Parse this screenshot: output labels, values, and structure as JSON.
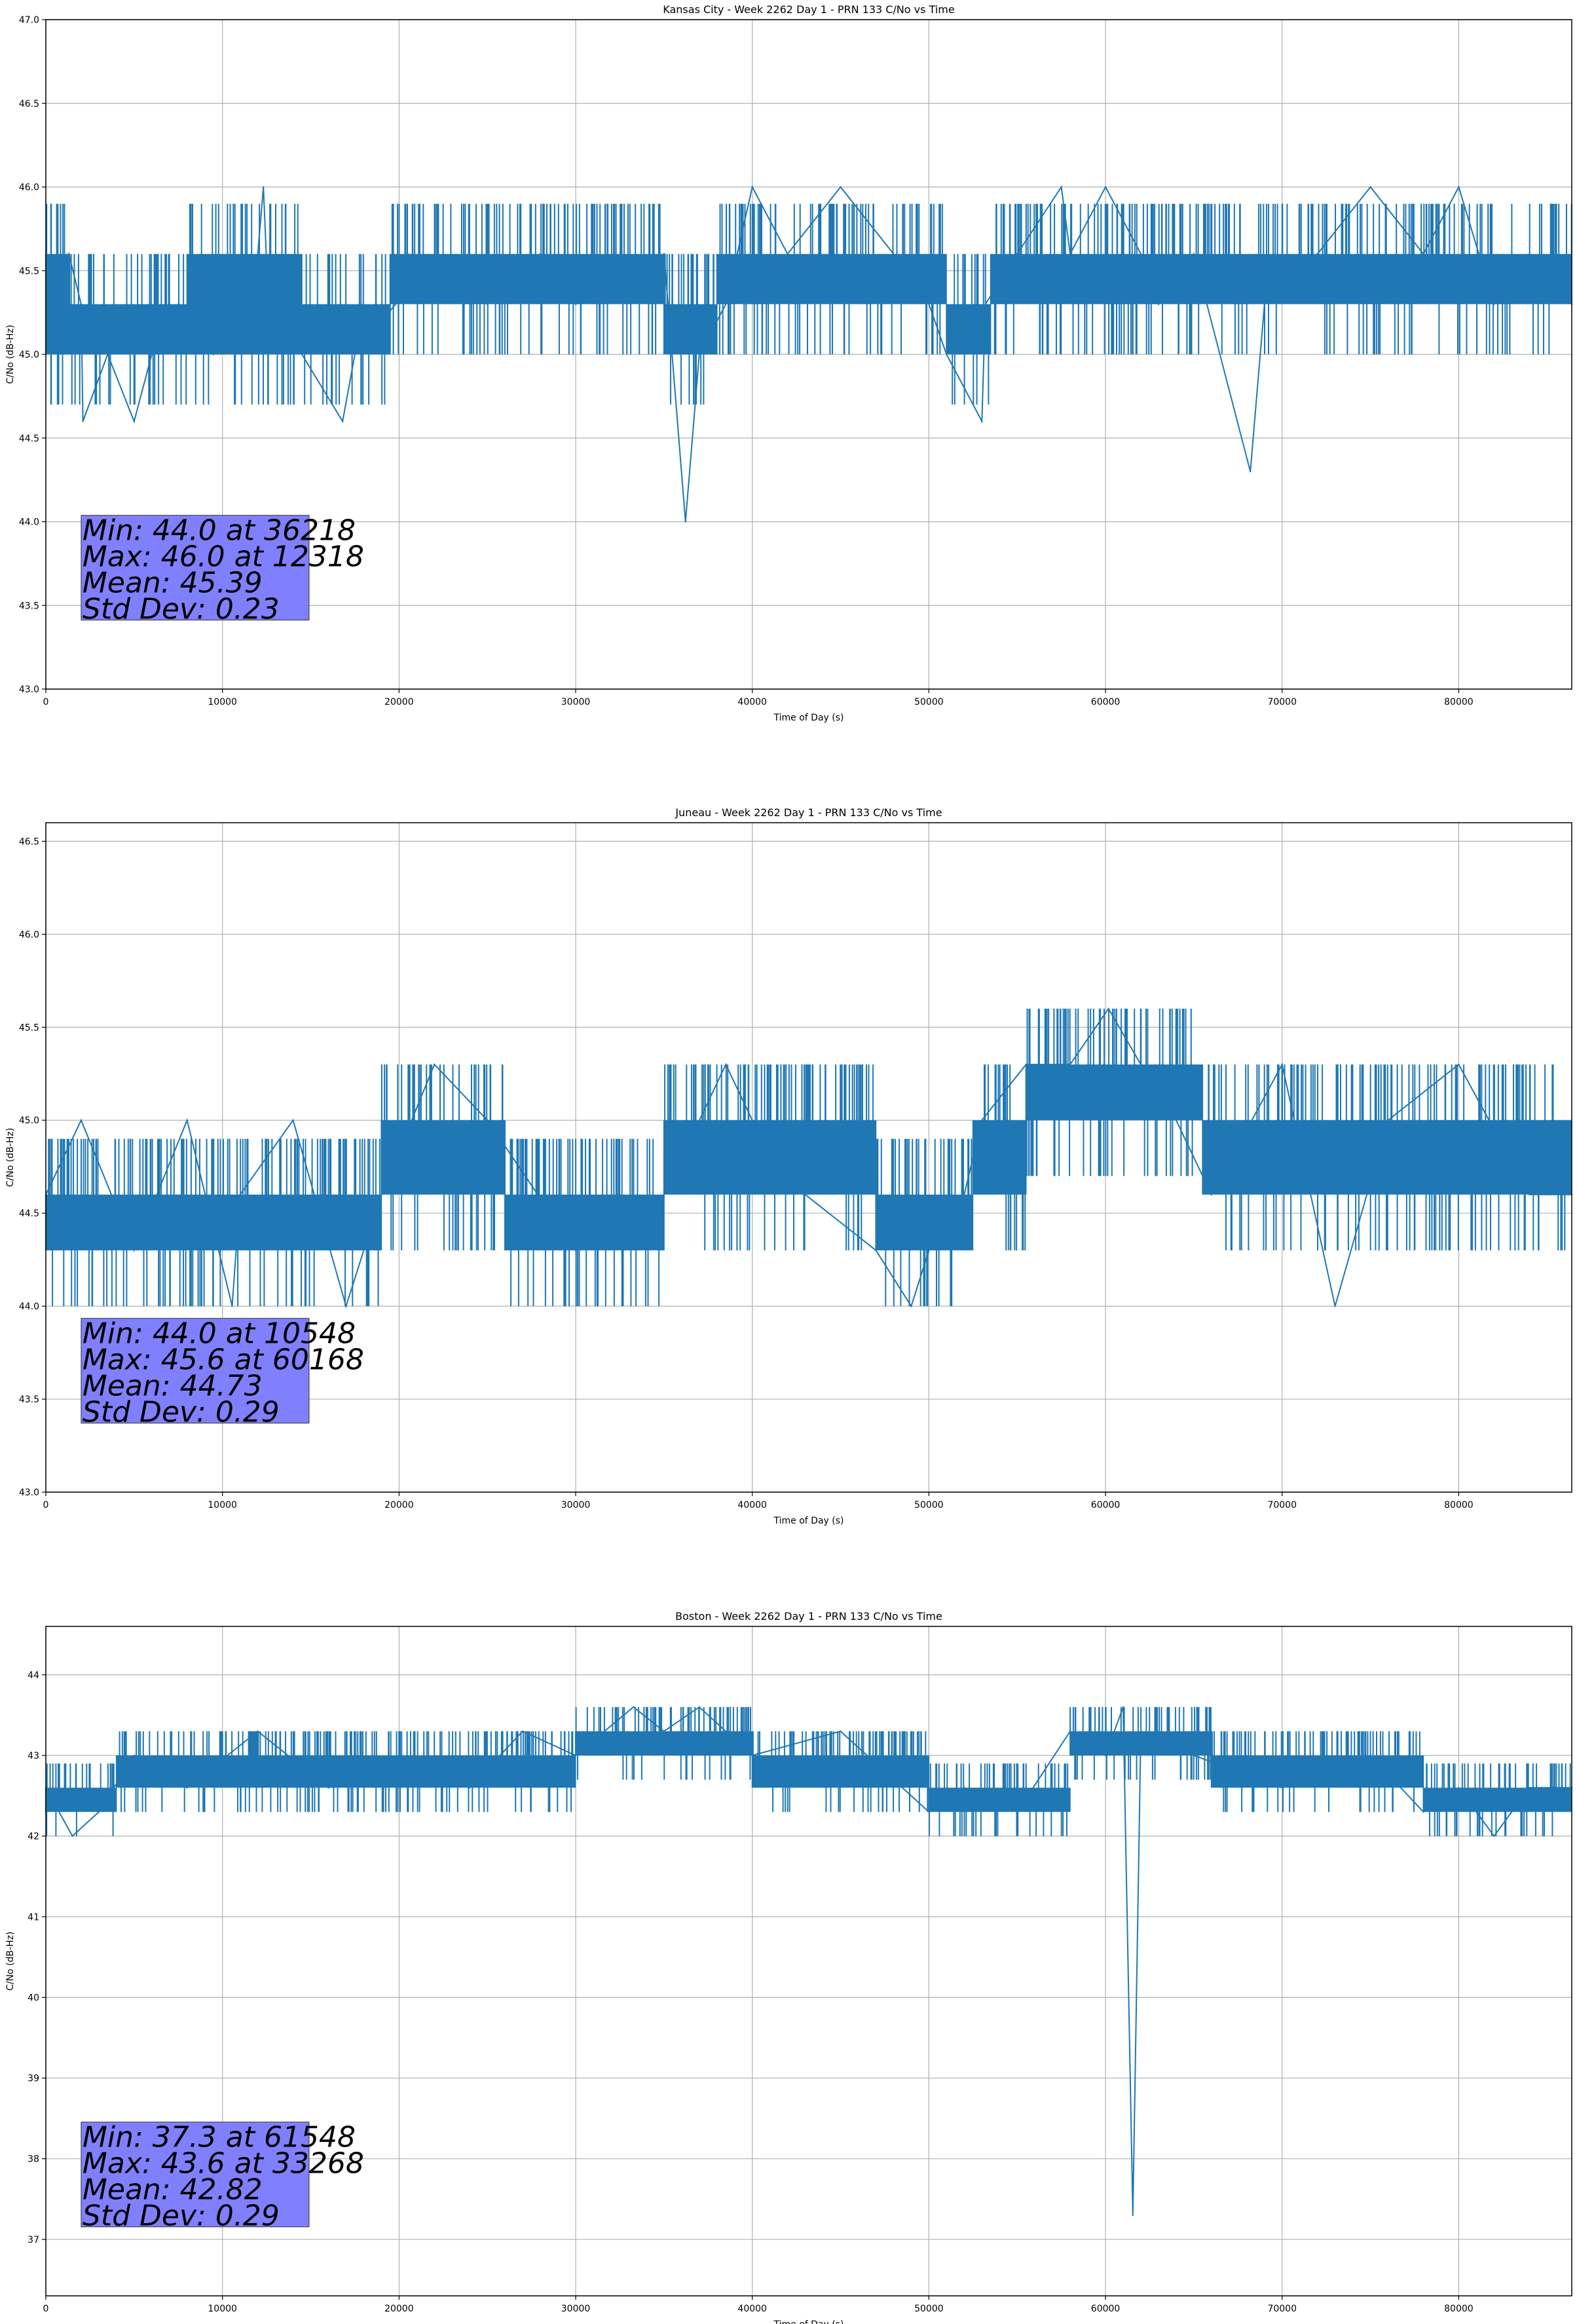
{
  "chart_data": [
    {
      "type": "line",
      "title": "Kansas City - Week 2262 Day 1 - PRN 133 C/No vs Time",
      "xlabel": "Time of Day (s)",
      "ylabel": "C/No (dB-Hz)",
      "xlim": [
        0,
        86400
      ],
      "ylim": [
        43.0,
        47.0
      ],
      "xticks": [
        0,
        10000,
        20000,
        30000,
        40000,
        50000,
        60000,
        70000,
        80000
      ],
      "yticks": [
        "43.0",
        "43.5",
        "44.0",
        "44.5",
        "45.0",
        "45.5",
        "46.0",
        "46.5",
        "47.0"
      ],
      "grid": true,
      "series_color": "#1f77b4",
      "series": [
        {
          "x": [
            0,
            1300,
            2000,
            2100,
            3500,
            5000,
            6000,
            7500,
            9500,
            10500,
            12000,
            12318,
            12600,
            14500,
            16800,
            17500,
            19800,
            20500,
            25000,
            28000,
            30000,
            35000,
            36218,
            37000,
            38500,
            40000,
            42000,
            45000,
            48000,
            50000,
            51000,
            53000,
            53200,
            55000,
            57500,
            58000,
            60000,
            62000,
            63000,
            65000,
            68200,
            69000,
            72000,
            75000,
            78000,
            80000,
            82000,
            84000,
            86400
          ],
          "y": [
            45.3,
            45.6,
            45.3,
            44.6,
            45.0,
            44.6,
            45.0,
            45.3,
            45.0,
            45.3,
            45.6,
            46.0,
            45.3,
            45.0,
            44.6,
            45.0,
            45.3,
            45.6,
            45.3,
            45.6,
            45.3,
            45.6,
            44.0,
            45.0,
            45.3,
            46.0,
            45.6,
            46.0,
            45.6,
            45.3,
            45.0,
            44.6,
            45.3,
            45.6,
            46.0,
            45.6,
            46.0,
            45.6,
            45.3,
            45.6,
            44.3,
            45.3,
            45.6,
            46.0,
            45.6,
            46.0,
            45.3,
            45.6,
            45.3
          ],
          "band": [
            [
              0,
              1300,
              45.0,
              45.6
            ],
            [
              1300,
              8000,
              45.0,
              45.3
            ],
            [
              8000,
              14500,
              45.0,
              45.6
            ],
            [
              14500,
              19500,
              45.0,
              45.3
            ],
            [
              19500,
              35000,
              45.3,
              45.6
            ],
            [
              35000,
              38000,
              45.0,
              45.3
            ],
            [
              38000,
              51000,
              45.3,
              45.6
            ],
            [
              51000,
              53500,
              45.0,
              45.3
            ],
            [
              53500,
              86400,
              45.3,
              45.6
            ]
          ]
        }
      ],
      "stats": {
        "line1": "Min: 44.0 at 36218",
        "line2": "Max: 46.0 at 12318",
        "line3": "Mean: 45.39",
        "line4": "Std Dev: 0.23"
      }
    },
    {
      "type": "line",
      "title": "Juneau - Week 2262 Day 1 - PRN 133 C/No vs Time",
      "xlabel": "Time of Day (s)",
      "ylabel": "C/No (dB-Hz)",
      "xlim": [
        0,
        86400
      ],
      "ylim": [
        43.0,
        46.6
      ],
      "xticks": [
        0,
        10000,
        20000,
        30000,
        40000,
        50000,
        60000,
        70000,
        80000
      ],
      "yticks": [
        "43.0",
        "43.5",
        "44.0",
        "44.5",
        "45.0",
        "45.5",
        "46.0",
        "46.5"
      ],
      "grid": true,
      "series_color": "#1f77b4",
      "series": [
        {
          "x": [
            0,
            2000,
            5000,
            8000,
            10548,
            11000,
            14000,
            17000,
            19000,
            22000,
            25000,
            30000,
            35000,
            38500,
            40000,
            43000,
            47000,
            49000,
            50000,
            52000,
            53000,
            55500,
            58000,
            60168,
            62000,
            64000,
            66000,
            70000,
            73000,
            76000,
            80000,
            84000,
            86400
          ],
          "y": [
            44.6,
            45.0,
            44.3,
            45.0,
            44.0,
            44.6,
            45.0,
            44.0,
            44.6,
            45.3,
            45.0,
            44.3,
            44.6,
            45.3,
            45.0,
            44.6,
            44.3,
            44.0,
            44.3,
            44.6,
            45.0,
            45.3,
            45.3,
            45.6,
            45.3,
            45.0,
            44.6,
            45.3,
            44.0,
            45.0,
            45.3,
            44.6,
            44.6
          ],
          "band": [
            [
              0,
              14000,
              44.3,
              44.6
            ],
            [
              14000,
              19000,
              44.3,
              44.6
            ],
            [
              19000,
              26000,
              44.6,
              45.0
            ],
            [
              26000,
              35000,
              44.3,
              44.6
            ],
            [
              35000,
              47000,
              44.6,
              45.0
            ],
            [
              47000,
              52500,
              44.3,
              44.6
            ],
            [
              52500,
              55500,
              44.6,
              45.0
            ],
            [
              55500,
              65500,
              45.0,
              45.3
            ],
            [
              65500,
              86400,
              44.6,
              45.0
            ]
          ]
        }
      ],
      "stats": {
        "line1": "Min: 44.0 at 10548",
        "line2": "Max: 45.6 at 60168",
        "line3": "Mean: 44.73",
        "line4": "Std Dev: 0.29"
      }
    },
    {
      "type": "line",
      "title": "Boston - Week 2262 Day 1 - PRN 133 C/No vs Time",
      "xlabel": "Time of Day (s)",
      "ylabel": "C/No (dB-Hz)",
      "xlim": [
        0,
        86400
      ],
      "ylim": [
        36.3,
        44.6
      ],
      "xticks": [
        0,
        10000,
        20000,
        30000,
        40000,
        50000,
        60000,
        70000,
        80000
      ],
      "yticks": [
        "37",
        "38",
        "39",
        "40",
        "41",
        "42",
        "43",
        "44"
      ],
      "grid": true,
      "series_color": "#1f77b4",
      "series": [
        {
          "x": [
            0,
            1500,
            3000,
            5000,
            8000,
            12000,
            16000,
            20000,
            24000,
            27000,
            30000,
            33268,
            35000,
            37000,
            40000,
            45000,
            50000,
            52000,
            55000,
            58000,
            60000,
            61000,
            61548,
            62000,
            65000,
            70000,
            75000,
            78000,
            80000,
            82000,
            84000,
            86400
          ],
          "y": [
            42.6,
            42.0,
            42.3,
            43.0,
            42.6,
            43.3,
            42.6,
            43.0,
            42.6,
            43.3,
            43.0,
            43.6,
            43.3,
            43.6,
            43.0,
            43.3,
            42.3,
            42.6,
            42.3,
            43.3,
            43.0,
            43.6,
            37.3,
            43.3,
            43.0,
            42.6,
            43.0,
            42.3,
            42.6,
            42.0,
            42.6,
            42.6
          ],
          "band": [
            [
              0,
              4000,
              42.3,
              42.6
            ],
            [
              4000,
              30000,
              42.6,
              43.0
            ],
            [
              30000,
              40000,
              43.0,
              43.3
            ],
            [
              40000,
              50000,
              42.6,
              43.0
            ],
            [
              50000,
              58000,
              42.3,
              42.6
            ],
            [
              58000,
              66000,
              43.0,
              43.3
            ],
            [
              66000,
              78000,
              42.6,
              43.0
            ],
            [
              78000,
              86400,
              42.3,
              42.6
            ]
          ]
        }
      ],
      "stats": {
        "line1": "Min: 37.3 at 61548",
        "line2": "Max: 43.6 at 33268",
        "line3": "Mean: 42.82",
        "line4": "Std Dev: 0.29"
      }
    }
  ]
}
